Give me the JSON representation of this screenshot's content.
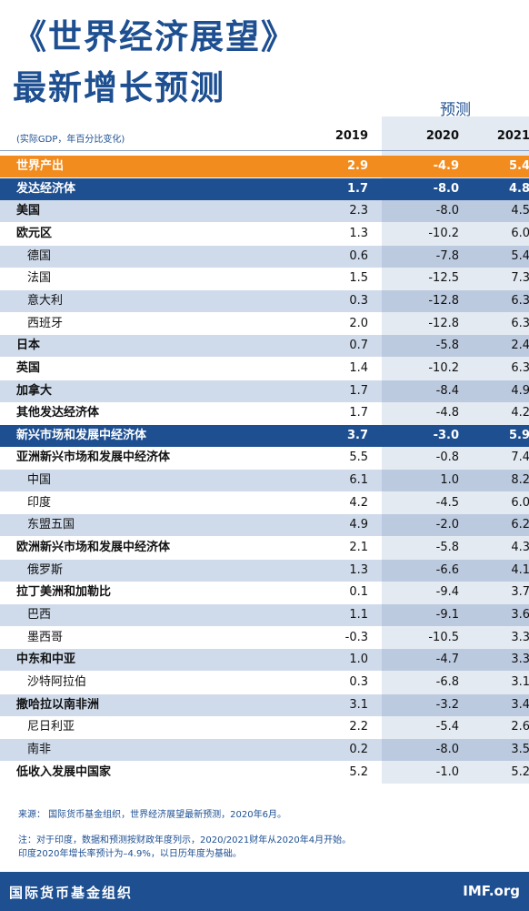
{
  "header": {
    "title_line1": "《世界经济展望》",
    "title_line2": "最新增长预测",
    "forecast_label": "预测",
    "unit_note": "(实际GDP，年百分比变化)",
    "years": [
      "2019",
      "2020",
      "2021"
    ]
  },
  "table": {
    "rows": [
      {
        "label": "世界产出",
        "values": [
          "2.9",
          "-4.9",
          "5.4"
        ]
      },
      {
        "label": "发达经济体",
        "values": [
          "1.7",
          "-8.0",
          "4.8"
        ]
      },
      {
        "label": "美国",
        "values": [
          "2.3",
          "-8.0",
          "4.5"
        ]
      },
      {
        "label": "欧元区",
        "values": [
          "1.3",
          "-10.2",
          "6.0"
        ]
      },
      {
        "label": "德国",
        "values": [
          "0.6",
          "-7.8",
          "5.4"
        ]
      },
      {
        "label": "法国",
        "values": [
          "1.5",
          "-12.5",
          "7.3"
        ]
      },
      {
        "label": "意大利",
        "values": [
          "0.3",
          "-12.8",
          "6.3"
        ]
      },
      {
        "label": "西班牙",
        "values": [
          "2.0",
          "-12.8",
          "6.3"
        ]
      },
      {
        "label": "日本",
        "values": [
          "0.7",
          "-5.8",
          "2.4"
        ]
      },
      {
        "label": "英国",
        "values": [
          "1.4",
          "-10.2",
          "6.3"
        ]
      },
      {
        "label": "加拿大",
        "values": [
          "1.7",
          "-8.4",
          "4.9"
        ]
      },
      {
        "label": "其他发达经济体",
        "values": [
          "1.7",
          "-4.8",
          "4.2"
        ]
      },
      {
        "label": "新兴市场和发展中经济体",
        "values": [
          "3.7",
          "-3.0",
          "5.9"
        ]
      },
      {
        "label": "亚洲新兴市场和发展中经济体",
        "values": [
          "5.5",
          "-0.8",
          "7.4"
        ]
      },
      {
        "label": "中国",
        "values": [
          "6.1",
          "1.0",
          "8.2"
        ]
      },
      {
        "label": "印度",
        "values": [
          "4.2",
          "-4.5",
          "6.0"
        ]
      },
      {
        "label": "东盟五国",
        "values": [
          "4.9",
          "-2.0",
          "6.2"
        ]
      },
      {
        "label": "欧洲新兴市场和发展中经济体",
        "values": [
          "2.1",
          "-5.8",
          "4.3"
        ]
      },
      {
        "label": "俄罗斯",
        "values": [
          "1.3",
          "-6.6",
          "4.1"
        ]
      },
      {
        "label": "拉丁美洲和加勒比",
        "values": [
          "0.1",
          "-9.4",
          "3.7"
        ]
      },
      {
        "label": "巴西",
        "values": [
          "1.1",
          "-9.1",
          "3.6"
        ]
      },
      {
        "label": "墨西哥",
        "values": [
          "-0.3",
          "-10.5",
          "3.3"
        ]
      },
      {
        "label": "中东和中亚",
        "values": [
          "1.0",
          "-4.7",
          "3.3"
        ]
      },
      {
        "label": "沙特阿拉伯",
        "values": [
          "0.3",
          "-6.8",
          "3.1"
        ]
      },
      {
        "label": "撒哈拉以南非洲",
        "values": [
          "3.1",
          "-3.2",
          "3.4"
        ]
      },
      {
        "label": "尼日利亚",
        "values": [
          "2.2",
          "-5.4",
          "2.6"
        ]
      },
      {
        "label": "南非",
        "values": [
          "0.2",
          "-8.0",
          "3.5"
        ]
      },
      {
        "label": "低收入发展中国家",
        "values": [
          "5.2",
          "-1.0",
          "5.2"
        ]
      }
    ]
  },
  "footer": {
    "source": "来源：  国际货币基金组织，世界经济展望最新预测，2020年6月。",
    "note_line1": "注：对于印度，数据和预测按财政年度列示，2020/2021财年从2020年4月开始。",
    "note_line2": "印度2020年增长率预计为–4.9%，以日历年度为基础。",
    "org": "国际货币基金组织",
    "site": "IMF.org"
  }
}
